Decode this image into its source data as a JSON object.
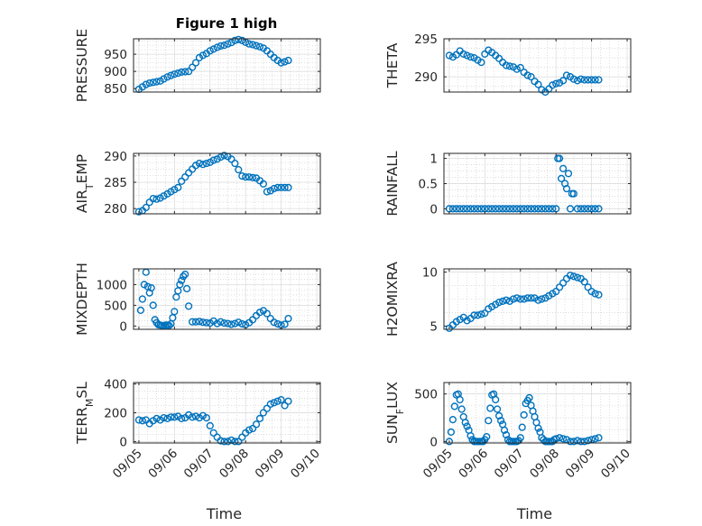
{
  "figure": {
    "title": "Figure 1 high"
  },
  "colors": {
    "marker": "#0072BD",
    "axis": "#262626"
  },
  "chart_data": [
    {
      "type": "scatter",
      "title": "Figure 1 high",
      "xlabel": "",
      "ylabel": "PRESSURE",
      "ylim": [
        840,
        995
      ],
      "yticks": [
        850,
        900,
        950
      ],
      "grid": true,
      "x": [
        5.0,
        5.1,
        5.2,
        5.3,
        5.4,
        5.5,
        5.6,
        5.7,
        5.8,
        5.9,
        6.0,
        6.1,
        6.2,
        6.3,
        6.4,
        6.5,
        6.6,
        6.7,
        6.8,
        6.9,
        7.0,
        7.1,
        7.2,
        7.3,
        7.4,
        7.5,
        7.6,
        7.7,
        7.8,
        7.9,
        8.0,
        8.1,
        8.2,
        8.3,
        8.4,
        8.5,
        8.6,
        8.7,
        8.8,
        8.9,
        9.0,
        9.1,
        9.2
      ],
      "y": [
        848,
        855,
        862,
        866,
        868,
        870,
        872,
        878,
        884,
        888,
        892,
        895,
        898,
        899,
        900,
        912,
        925,
        940,
        947,
        952,
        960,
        965,
        970,
        974,
        976,
        980,
        984,
        990,
        993,
        990,
        985,
        980,
        978,
        975,
        972,
        968,
        960,
        950,
        940,
        932,
        925,
        928,
        932
      ]
    },
    {
      "type": "scatter",
      "xlabel": "",
      "ylabel": "THETA",
      "ylim": [
        288,
        295
      ],
      "yticks": [
        290,
        295
      ],
      "grid": true,
      "x": [
        5.0,
        5.1,
        5.2,
        5.3,
        5.4,
        5.5,
        5.6,
        5.7,
        5.8,
        5.9,
        6.0,
        6.1,
        6.2,
        6.3,
        6.4,
        6.5,
        6.6,
        6.7,
        6.8,
        6.9,
        7.0,
        7.1,
        7.2,
        7.3,
        7.4,
        7.5,
        7.6,
        7.7,
        7.8,
        7.9,
        8.0,
        8.1,
        8.2,
        8.3,
        8.4,
        8.5,
        8.6,
        8.7,
        8.8,
        8.9,
        9.0,
        9.1,
        9.2
      ],
      "y": [
        292.8,
        292.6,
        292.9,
        293.4,
        293.0,
        292.8,
        292.6,
        292.5,
        292.2,
        291.9,
        293.0,
        293.5,
        293.2,
        292.8,
        292.4,
        291.9,
        291.5,
        291.4,
        291.3,
        291.0,
        291.2,
        290.6,
        290.2,
        290.0,
        289.4,
        289.0,
        288.3,
        288.0,
        288.4,
        288.9,
        289.1,
        289.2,
        289.5,
        290.2,
        290.0,
        289.7,
        289.5,
        289.7,
        289.6,
        289.6,
        289.6,
        289.6,
        289.6
      ]
    },
    {
      "type": "scatter",
      "xlabel": "",
      "ylabel": "AIR_TEMP",
      "ylim": [
        279,
        290.5
      ],
      "yticks": [
        280,
        285,
        290
      ],
      "grid": true,
      "x": [
        5.0,
        5.1,
        5.2,
        5.3,
        5.4,
        5.5,
        5.6,
        5.7,
        5.8,
        5.9,
        6.0,
        6.1,
        6.2,
        6.3,
        6.4,
        6.5,
        6.6,
        6.7,
        6.8,
        6.9,
        7.0,
        7.1,
        7.2,
        7.3,
        7.4,
        7.5,
        7.6,
        7.7,
        7.8,
        7.9,
        8.0,
        8.1,
        8.2,
        8.3,
        8.4,
        8.5,
        8.6,
        8.7,
        8.8,
        8.9,
        9.0,
        9.1,
        9.2
      ],
      "y": [
        279.4,
        279.6,
        280.2,
        281.2,
        281.9,
        281.8,
        282.0,
        282.4,
        282.8,
        283.2,
        283.6,
        284.0,
        285.2,
        286.0,
        286.8,
        287.5,
        288.2,
        288.6,
        288.4,
        288.6,
        288.8,
        289.2,
        289.4,
        289.8,
        290.1,
        289.9,
        289.4,
        288.6,
        287.4,
        286.2,
        286.0,
        286.0,
        285.9,
        285.8,
        285.3,
        284.7,
        283.2,
        283.4,
        283.8,
        284.0,
        284.0,
        284.0,
        284.0
      ]
    },
    {
      "type": "scatter",
      "xlabel": "",
      "ylabel": "RAINFALL",
      "ylim": [
        -0.1,
        1.1
      ],
      "yticks": [
        0,
        0.5,
        1
      ],
      "grid": true,
      "x": [
        5.0,
        5.1,
        5.2,
        5.3,
        5.4,
        5.5,
        5.6,
        5.7,
        5.8,
        5.9,
        6.0,
        6.1,
        6.2,
        6.3,
        6.4,
        6.5,
        6.6,
        6.7,
        6.8,
        6.9,
        7.0,
        7.1,
        7.2,
        7.3,
        7.4,
        7.5,
        7.6,
        7.7,
        7.8,
        7.9,
        8.0,
        8.05,
        8.1,
        8.15,
        8.2,
        8.25,
        8.3,
        8.35,
        8.4,
        8.45,
        8.5,
        8.6,
        8.7,
        8.8,
        8.9,
        9.0,
        9.1,
        9.2
      ],
      "y": [
        0,
        0,
        0,
        0,
        0,
        0,
        0,
        0,
        0,
        0,
        0,
        0,
        0,
        0,
        0,
        0,
        0,
        0,
        0,
        0,
        0,
        0,
        0,
        0,
        0,
        0,
        0,
        0,
        0,
        0,
        0,
        1.0,
        1.0,
        0.6,
        0.8,
        0.5,
        0.4,
        0.7,
        0,
        0.3,
        0.3,
        0,
        0,
        0,
        0,
        0,
        0,
        0
      ]
    },
    {
      "type": "scatter",
      "xlabel": "",
      "ylabel": "MIXDEPTH",
      "ylim": [
        -80,
        1380
      ],
      "yticks": [
        0,
        500,
        1000
      ],
      "grid": true,
      "x": [
        5.05,
        5.1,
        5.15,
        5.2,
        5.25,
        5.3,
        5.35,
        5.4,
        5.45,
        5.5,
        5.55,
        5.6,
        5.65,
        5.7,
        5.75,
        5.8,
        5.85,
        5.9,
        5.95,
        6.0,
        6.05,
        6.1,
        6.15,
        6.2,
        6.25,
        6.3,
        6.35,
        6.4,
        6.5,
        6.6,
        6.7,
        6.8,
        6.9,
        7.0,
        7.1,
        7.2,
        7.3,
        7.4,
        7.5,
        7.6,
        7.7,
        7.8,
        7.9,
        8.0,
        8.1,
        8.2,
        8.3,
        8.4,
        8.5,
        8.6,
        8.7,
        8.8,
        8.9,
        9.0,
        9.1,
        9.2
      ],
      "y": [
        380,
        650,
        1000,
        1300,
        950,
        800,
        920,
        500,
        150,
        80,
        30,
        20,
        10,
        10,
        20,
        20,
        10,
        50,
        200,
        350,
        700,
        850,
        1000,
        1100,
        1200,
        1250,
        900,
        480,
        100,
        100,
        110,
        90,
        80,
        70,
        120,
        60,
        100,
        70,
        60,
        40,
        60,
        90,
        50,
        30,
        80,
        150,
        250,
        330,
        370,
        300,
        180,
        90,
        50,
        20,
        40,
        180
      ]
    },
    {
      "type": "scatter",
      "xlabel": "",
      "ylabel": "H2OMIXRA",
      "ylim": [
        4.7,
        10.3
      ],
      "yticks": [
        5,
        10
      ],
      "grid": true,
      "x": [
        5.0,
        5.1,
        5.2,
        5.3,
        5.4,
        5.5,
        5.6,
        5.7,
        5.8,
        5.9,
        6.0,
        6.1,
        6.2,
        6.3,
        6.4,
        6.5,
        6.6,
        6.7,
        6.8,
        6.9,
        7.0,
        7.1,
        7.2,
        7.3,
        7.4,
        7.5,
        7.6,
        7.7,
        7.8,
        7.9,
        8.0,
        8.1,
        8.2,
        8.3,
        8.4,
        8.5,
        8.6,
        8.7,
        8.8,
        8.9,
        9.0,
        9.1,
        9.2
      ],
      "y": [
        4.8,
        5.1,
        5.4,
        5.6,
        5.8,
        5.5,
        5.7,
        6.0,
        6.0,
        6.1,
        6.2,
        6.6,
        6.8,
        7.0,
        7.2,
        7.3,
        7.4,
        7.3,
        7.5,
        7.6,
        7.5,
        7.5,
        7.6,
        7.6,
        7.6,
        7.4,
        7.5,
        7.6,
        7.8,
        8.0,
        8.2,
        8.6,
        9.0,
        9.4,
        9.7,
        9.6,
        9.5,
        9.4,
        9.1,
        8.6,
        8.2,
        8.0,
        7.9
      ]
    },
    {
      "type": "scatter",
      "xlabel": "Time",
      "ylabel": "TERR_MSL",
      "ylim": [
        -10,
        410
      ],
      "yticks": [
        0,
        200,
        400
      ],
      "grid": true,
      "x": [
        5.0,
        5.1,
        5.2,
        5.3,
        5.4,
        5.5,
        5.6,
        5.7,
        5.8,
        5.9,
        6.0,
        6.1,
        6.2,
        6.3,
        6.4,
        6.5,
        6.6,
        6.7,
        6.8,
        6.9,
        7.0,
        7.1,
        7.2,
        7.3,
        7.4,
        7.5,
        7.6,
        7.7,
        7.8,
        7.9,
        8.0,
        8.1,
        8.2,
        8.3,
        8.4,
        8.5,
        8.6,
        8.7,
        8.8,
        8.9,
        9.0,
        9.1,
        9.2
      ],
      "y": [
        150,
        145,
        150,
        125,
        145,
        160,
        150,
        165,
        160,
        170,
        170,
        175,
        160,
        165,
        185,
        170,
        175,
        165,
        180,
        165,
        110,
        60,
        30,
        5,
        0,
        0,
        10,
        0,
        0,
        30,
        60,
        80,
        90,
        120,
        160,
        200,
        230,
        260,
        270,
        280,
        290,
        250,
        280
      ]
    },
    {
      "type": "scatter",
      "xlabel": "Time",
      "ylabel": "SUN_FLUX",
      "ylim": [
        -15,
        620
      ],
      "yticks": [
        0,
        500
      ],
      "grid": true,
      "x": [
        5.0,
        5.05,
        5.1,
        5.15,
        5.2,
        5.25,
        5.3,
        5.35,
        5.4,
        5.45,
        5.5,
        5.55,
        5.6,
        5.65,
        5.7,
        5.75,
        5.8,
        5.85,
        5.9,
        5.95,
        6.0,
        6.05,
        6.1,
        6.15,
        6.2,
        6.25,
        6.3,
        6.35,
        6.4,
        6.45,
        6.5,
        6.55,
        6.6,
        6.65,
        6.7,
        6.75,
        6.8,
        6.85,
        6.9,
        6.95,
        7.0,
        7.05,
        7.1,
        7.15,
        7.2,
        7.25,
        7.3,
        7.35,
        7.4,
        7.45,
        7.5,
        7.55,
        7.6,
        7.65,
        7.7,
        7.75,
        7.8,
        7.85,
        7.9,
        7.95,
        8.0,
        8.1,
        8.2,
        8.3,
        8.4,
        8.5,
        8.6,
        8.7,
        8.8,
        8.9,
        9.0,
        9.1,
        9.2
      ],
      "y": [
        0,
        100,
        230,
        370,
        490,
        500,
        440,
        340,
        260,
        200,
        160,
        120,
        60,
        20,
        0,
        0,
        0,
        0,
        0,
        0,
        20,
        50,
        220,
        350,
        490,
        500,
        440,
        340,
        270,
        220,
        180,
        120,
        70,
        20,
        0,
        0,
        0,
        0,
        0,
        10,
        40,
        150,
        280,
        400,
        430,
        460,
        380,
        320,
        260,
        200,
        140,
        100,
        40,
        20,
        0,
        0,
        0,
        0,
        0,
        20,
        30,
        40,
        30,
        20,
        0,
        0,
        10,
        0,
        0,
        10,
        20,
        30,
        40
      ]
    }
  ],
  "x_axis": {
    "lim": [
      4.85,
      10.1
    ],
    "ticks": [
      5,
      6,
      7,
      8,
      9,
      10
    ],
    "tick_labels": [
      "09/05",
      "09/06",
      "09/07",
      "09/08",
      "09/09",
      "09/10"
    ]
  }
}
